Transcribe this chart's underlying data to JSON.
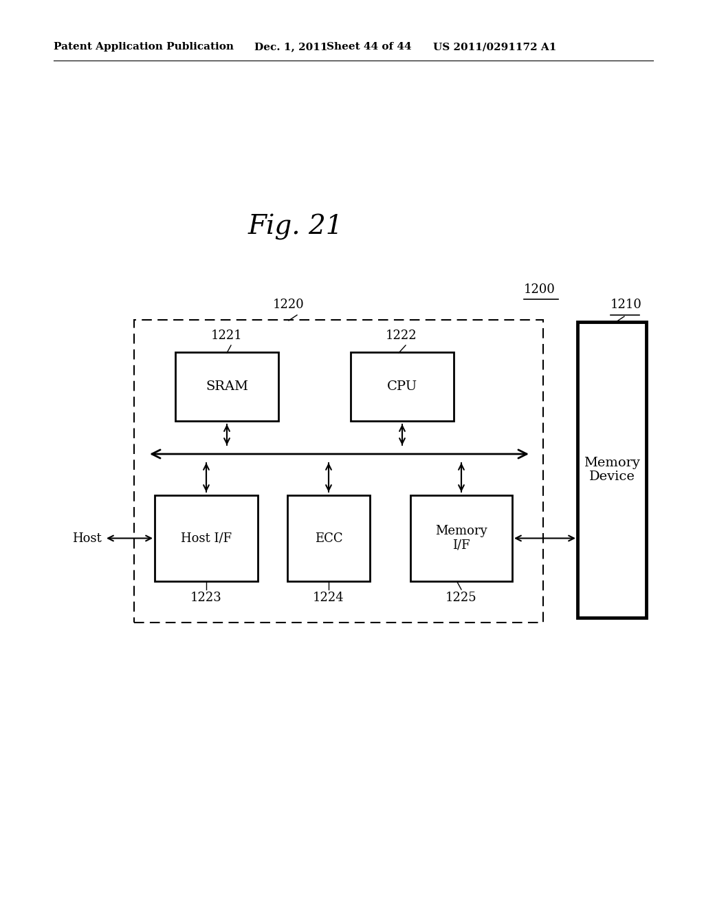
{
  "bg_color": "#ffffff",
  "header_text": "Patent Application Publication",
  "header_date": "Dec. 1, 2011",
  "header_sheet": "Sheet 44 of 44",
  "header_patent": "US 2011/0291172 A1",
  "fig_label": "Fig. 21",
  "label_1200": "1200",
  "label_1210": "1210",
  "label_1220": "1220",
  "label_1221": "1221",
  "label_1222": "1222",
  "label_1223": "1223",
  "label_1224": "1224",
  "label_1225": "1225",
  "box_sram": "SRAM",
  "box_cpu": "CPU",
  "box_hostif": "Host I/F",
  "box_ecc": "ECC",
  "box_memif": "Memory\nI/F",
  "box_memdev": "Memory\nDevice",
  "host_label": "Host"
}
